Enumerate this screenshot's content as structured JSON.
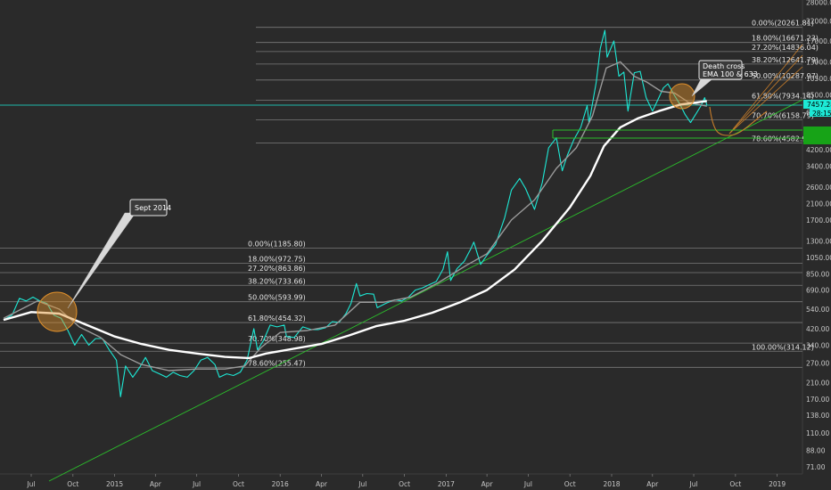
{
  "chart_data": {
    "type": "line",
    "scale": "log",
    "ylim": [
      65,
      28000
    ],
    "y_ticks": [
      "28000.00",
      "22000.00",
      "17000.00",
      "13000.00",
      "10500.00",
      "8500.00",
      "6800.00",
      "5200.00",
      "4200.00",
      "3400.00",
      "2600.00",
      "2100.00",
      "1700.00",
      "1300.00",
      "1050.00",
      "850.00",
      "690.00",
      "540.00",
      "420.00",
      "340.00",
      "270.00",
      "210.00",
      "170.00",
      "138.00",
      "110.00",
      "88.00",
      "71.00"
    ],
    "x_ticks": [
      "Jul",
      "Oct",
      "2015",
      "Apr",
      "Jul",
      "Oct",
      "2016",
      "Apr",
      "Jul",
      "Oct",
      "2017",
      "Apr",
      "Jul",
      "Oct",
      "2018",
      "Apr",
      "Jul",
      "Oct",
      "2019"
    ],
    "price_tags": [
      "7457.28",
      "28:15"
    ],
    "colors": {
      "background": "#2a2a2a",
      "price": "#1de9d6",
      "ema_fast": "#9a9a9a",
      "ema_slow": "#ffffff",
      "trendline": "#2bbf2b",
      "fib": "#7a7a7a",
      "highlight": "#e0902a",
      "projection": "#c77d2a"
    },
    "fib_sets": [
      {
        "levels": [
          {
            "label": "0.00%(1185.80)",
            "value": 1185.8
          },
          {
            "label": "18.00%(972.75)",
            "value": 972.75
          },
          {
            "label": "27.20%(863.86)",
            "value": 863.86
          },
          {
            "label": "38.20%(733.66)",
            "value": 733.66
          },
          {
            "label": "50.00%(593.99)",
            "value": 593.99
          },
          {
            "label": "61.80%(454.32)",
            "value": 454.32
          },
          {
            "label": "70.70%(348.98)",
            "value": 348.98
          },
          {
            "label": "78.60%(255.47)",
            "value": 255.47
          }
        ]
      },
      {
        "levels": [
          {
            "label": "0.00%(20261.81)",
            "value": 20261.81
          },
          {
            "label": "18.00%(16671.23)",
            "value": 16671.23
          },
          {
            "label": "27.20%(14836.04)",
            "value": 14836.04
          },
          {
            "label": "38.20%(12641.79)",
            "value": 12641.79
          },
          {
            "label": "50.00%(10287.97)",
            "value": 10287.97
          },
          {
            "label": "61.80%(7934.14)",
            "value": 7934.14
          },
          {
            "label": "70.70%(6158.79)",
            "value": 6158.79
          },
          {
            "label": "78.60%(4582.93)",
            "value": 4582.93
          },
          {
            "label": "100.00%(314.12)",
            "value": 314.12
          }
        ]
      }
    ],
    "annotations": [
      {
        "text": [
          "Sept 2014"
        ]
      },
      {
        "text": [
          "Death cross",
          "EMA 100 & 633"
        ]
      }
    ],
    "series": [
      {
        "key": "price",
        "points": [
          [
            "2014-05-01",
            470
          ],
          [
            "2014-05-20",
            500
          ],
          [
            "2014-06-05",
            620
          ],
          [
            "2014-06-20",
            600
          ],
          [
            "2014-07-05",
            630
          ],
          [
            "2014-07-20",
            600
          ],
          [
            "2014-08-05",
            580
          ],
          [
            "2014-08-20",
            500
          ],
          [
            "2014-09-05",
            480
          ],
          [
            "2014-09-20",
            410
          ],
          [
            "2014-10-05",
            340
          ],
          [
            "2014-10-20",
            390
          ],
          [
            "2014-11-05",
            340
          ],
          [
            "2014-11-20",
            370
          ],
          [
            "2014-12-05",
            370
          ],
          [
            "2014-12-20",
            320
          ],
          [
            "2015-01-05",
            280
          ],
          [
            "2015-01-14",
            175
          ],
          [
            "2015-01-25",
            260
          ],
          [
            "2015-02-10",
            225
          ],
          [
            "2015-02-25",
            255
          ],
          [
            "2015-03-10",
            290
          ],
          [
            "2015-03-25",
            245
          ],
          [
            "2015-04-10",
            235
          ],
          [
            "2015-04-25",
            225
          ],
          [
            "2015-05-10",
            240
          ],
          [
            "2015-05-25",
            230
          ],
          [
            "2015-06-10",
            225
          ],
          [
            "2015-06-25",
            245
          ],
          [
            "2015-07-10",
            280
          ],
          [
            "2015-07-25",
            290
          ],
          [
            "2015-08-10",
            265
          ],
          [
            "2015-08-20",
            225
          ],
          [
            "2015-09-05",
            235
          ],
          [
            "2015-09-20",
            230
          ],
          [
            "2015-10-05",
            240
          ],
          [
            "2015-10-20",
            280
          ],
          [
            "2015-11-04",
            420
          ],
          [
            "2015-11-12",
            320
          ],
          [
            "2015-11-25",
            360
          ],
          [
            "2015-12-10",
            440
          ],
          [
            "2015-12-25",
            430
          ],
          [
            "2016-01-10",
            440
          ],
          [
            "2016-01-15",
            380
          ],
          [
            "2016-02-01",
            375
          ],
          [
            "2016-02-20",
            430
          ],
          [
            "2016-03-10",
            415
          ],
          [
            "2016-03-25",
            415
          ],
          [
            "2016-04-10",
            425
          ],
          [
            "2016-04-25",
            460
          ],
          [
            "2016-05-10",
            455
          ],
          [
            "2016-05-25",
            510
          ],
          [
            "2016-06-05",
            580
          ],
          [
            "2016-06-17",
            750
          ],
          [
            "2016-06-25",
            640
          ],
          [
            "2016-07-10",
            660
          ],
          [
            "2016-07-25",
            655
          ],
          [
            "2016-08-02",
            550
          ],
          [
            "2016-08-20",
            580
          ],
          [
            "2016-09-10",
            610
          ],
          [
            "2016-09-25",
            600
          ],
          [
            "2016-10-10",
            630
          ],
          [
            "2016-10-25",
            690
          ],
          [
            "2016-11-10",
            710
          ],
          [
            "2016-11-25",
            740
          ],
          [
            "2016-12-10",
            770
          ],
          [
            "2016-12-25",
            900
          ],
          [
            "2017-01-04",
            1130
          ],
          [
            "2017-01-11",
            780
          ],
          [
            "2017-01-25",
            910
          ],
          [
            "2017-02-10",
            1000
          ],
          [
            "2017-02-25",
            1180
          ],
          [
            "2017-03-03",
            1280
          ],
          [
            "2017-03-18",
            960
          ],
          [
            "2017-04-01",
            1080
          ],
          [
            "2017-04-20",
            1240
          ],
          [
            "2017-05-10",
            1750
          ],
          [
            "2017-05-25",
            2500
          ],
          [
            "2017-06-12",
            2900
          ],
          [
            "2017-06-25",
            2550
          ],
          [
            "2017-07-15",
            1950
          ],
          [
            "2017-08-01",
            2750
          ],
          [
            "2017-08-15",
            4300
          ],
          [
            "2017-09-01",
            4900
          ],
          [
            "2017-09-14",
            3200
          ],
          [
            "2017-09-25",
            3900
          ],
          [
            "2017-10-10",
            4800
          ],
          [
            "2017-10-25",
            5600
          ],
          [
            "2017-11-08",
            7400
          ],
          [
            "2017-11-12",
            5900
          ],
          [
            "2017-11-28",
            10000
          ],
          [
            "2017-12-07",
            15500
          ],
          [
            "2017-12-17",
            19500
          ],
          [
            "2017-12-22",
            13800
          ],
          [
            "2018-01-06",
            17000
          ],
          [
            "2018-01-17",
            10800
          ],
          [
            "2018-01-28",
            11400
          ],
          [
            "2018-02-06",
            6900
          ],
          [
            "2018-02-20",
            11300
          ],
          [
            "2018-03-05",
            11500
          ],
          [
            "2018-03-18",
            8200
          ],
          [
            "2018-04-01",
            6900
          ],
          [
            "2018-04-12",
            7900
          ],
          [
            "2018-04-25",
            9300
          ],
          [
            "2018-05-05",
            9800
          ],
          [
            "2018-05-20",
            8400
          ],
          [
            "2018-06-01",
            7500
          ],
          [
            "2018-06-12",
            6600
          ],
          [
            "2018-06-24",
            5950
          ],
          [
            "2018-07-05",
            6600
          ],
          [
            "2018-07-17",
            7400
          ],
          [
            "2018-07-25",
            8200
          ],
          [
            "2018-07-30",
            7457
          ]
        ]
      },
      {
        "key": "ema_fast",
        "points": [
          [
            "2014-05-01",
            480
          ],
          [
            "2014-07-15",
            600
          ],
          [
            "2014-09-01",
            540
          ],
          [
            "2014-10-15",
            430
          ],
          [
            "2014-12-01",
            375
          ],
          [
            "2015-01-15",
            300
          ],
          [
            "2015-03-01",
            265
          ],
          [
            "2015-05-01",
            245
          ],
          [
            "2015-07-01",
            250
          ],
          [
            "2015-09-01",
            250
          ],
          [
            "2015-10-15",
            260
          ],
          [
            "2015-11-20",
            330
          ],
          [
            "2016-01-01",
            400
          ],
          [
            "2016-03-01",
            410
          ],
          [
            "2016-05-01",
            440
          ],
          [
            "2016-06-25",
            590
          ],
          [
            "2016-08-15",
            590
          ],
          [
            "2016-10-15",
            630
          ],
          [
            "2016-12-15",
            760
          ],
          [
            "2017-02-15",
            950
          ],
          [
            "2017-04-01",
            1100
          ],
          [
            "2017-05-25",
            1700
          ],
          [
            "2017-07-15",
            2200
          ],
          [
            "2017-09-01",
            3300
          ],
          [
            "2017-10-15",
            4300
          ],
          [
            "2017-11-20",
            6500
          ],
          [
            "2017-12-20",
            12000
          ],
          [
            "2018-01-20",
            13000
          ],
          [
            "2018-02-20",
            10800
          ],
          [
            "2018-03-20",
            10000
          ],
          [
            "2018-04-20",
            8900
          ],
          [
            "2018-05-20",
            8700
          ],
          [
            "2018-06-20",
            7700
          ],
          [
            "2018-07-30",
            7350
          ]
        ]
      },
      {
        "key": "ema_slow",
        "points": [
          [
            "2014-05-01",
            470
          ],
          [
            "2014-07-01",
            520
          ],
          [
            "2014-09-01",
            510
          ],
          [
            "2014-11-01",
            440
          ],
          [
            "2015-01-01",
            380
          ],
          [
            "2015-03-01",
            345
          ],
          [
            "2015-05-01",
            320
          ],
          [
            "2015-07-01",
            305
          ],
          [
            "2015-09-01",
            292
          ],
          [
            "2015-10-25",
            288
          ],
          [
            "2015-12-01",
            305
          ],
          [
            "2016-02-01",
            325
          ],
          [
            "2016-04-01",
            345
          ],
          [
            "2016-06-01",
            385
          ],
          [
            "2016-08-01",
            435
          ],
          [
            "2016-10-01",
            465
          ],
          [
            "2016-12-01",
            515
          ],
          [
            "2017-02-01",
            590
          ],
          [
            "2017-04-01",
            690
          ],
          [
            "2017-06-01",
            900
          ],
          [
            "2017-08-01",
            1300
          ],
          [
            "2017-10-01",
            2000
          ],
          [
            "2017-11-15",
            3000
          ],
          [
            "2017-12-15",
            4400
          ],
          [
            "2018-01-20",
            5600
          ],
          [
            "2018-03-01",
            6300
          ],
          [
            "2018-04-15",
            6900
          ],
          [
            "2018-06-01",
            7500
          ],
          [
            "2018-07-30",
            7850
          ]
        ]
      }
    ]
  }
}
